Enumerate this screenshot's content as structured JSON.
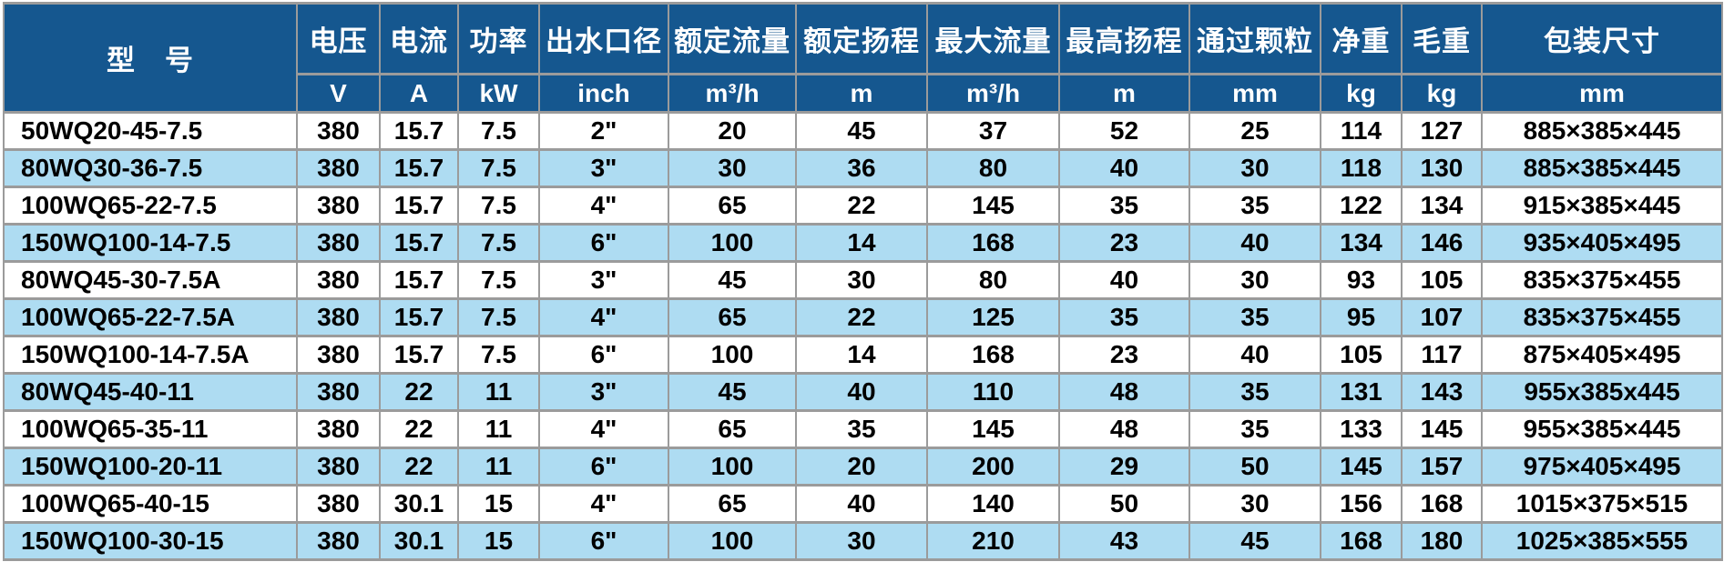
{
  "colors": {
    "header_bg": "#15578f",
    "row_alt_bg": "#aedcf2",
    "grid_line": "#9b9b9b",
    "header_text": "#ffffff",
    "body_text": "#000000"
  },
  "table": {
    "header": {
      "model": "型　号",
      "columns": [
        {
          "key": "voltage",
          "label": "电压",
          "unit": "V"
        },
        {
          "key": "current",
          "label": "电流",
          "unit": "A"
        },
        {
          "key": "power",
          "label": "功率",
          "unit": "kW"
        },
        {
          "key": "outlet-diameter",
          "label": "出水口径",
          "unit": "inch"
        },
        {
          "key": "rated-flow",
          "label": "额定流量",
          "unit": "m³/h"
        },
        {
          "key": "rated-head",
          "label": "额定扬程",
          "unit": "m"
        },
        {
          "key": "max-flow",
          "label": "最大流量",
          "unit": "m³/h"
        },
        {
          "key": "max-head",
          "label": "最高扬程",
          "unit": "m"
        },
        {
          "key": "particle-size",
          "label": "通过颗粒",
          "unit": "mm"
        },
        {
          "key": "net-weight",
          "label": "净重",
          "unit": "kg"
        },
        {
          "key": "gross-weight",
          "label": "毛重",
          "unit": "kg"
        },
        {
          "key": "package-size",
          "label": "包装尺寸",
          "unit": "mm"
        }
      ]
    },
    "rows": [
      [
        "50WQ20-45-7.5",
        "380",
        "15.7",
        "7.5",
        "2\"",
        "20",
        "45",
        "37",
        "52",
        "25",
        "114",
        "127",
        "885×385×445"
      ],
      [
        "80WQ30-36-7.5",
        "380",
        "15.7",
        "7.5",
        "3\"",
        "30",
        "36",
        "80",
        "40",
        "30",
        "118",
        "130",
        "885×385×445"
      ],
      [
        "100WQ65-22-7.5",
        "380",
        "15.7",
        "7.5",
        "4\"",
        "65",
        "22",
        "145",
        "35",
        "35",
        "122",
        "134",
        "915×385×445"
      ],
      [
        "150WQ100-14-7.5",
        "380",
        "15.7",
        "7.5",
        "6\"",
        "100",
        "14",
        "168",
        "23",
        "40",
        "134",
        "146",
        "935×405×495"
      ],
      [
        "80WQ45-30-7.5A",
        "380",
        "15.7",
        "7.5",
        "3\"",
        "45",
        "30",
        "80",
        "40",
        "30",
        "93",
        "105",
        "835×375×455"
      ],
      [
        "100WQ65-22-7.5A",
        "380",
        "15.7",
        "7.5",
        "4\"",
        "65",
        "22",
        "125",
        "35",
        "35",
        "95",
        "107",
        "835×375×455"
      ],
      [
        "150WQ100-14-7.5A",
        "380",
        "15.7",
        "7.5",
        "6\"",
        "100",
        "14",
        "168",
        "23",
        "40",
        "105",
        "117",
        "875×405×495"
      ],
      [
        "80WQ45-40-11",
        "380",
        "22",
        "11",
        "3\"",
        "45",
        "40",
        "110",
        "48",
        "35",
        "131",
        "143",
        "955x385x445"
      ],
      [
        "100WQ65-35-11",
        "380",
        "22",
        "11",
        "4\"",
        "65",
        "35",
        "145",
        "48",
        "35",
        "133",
        "145",
        "955×385×445"
      ],
      [
        "150WQ100-20-11",
        "380",
        "22",
        "11",
        "6\"",
        "100",
        "20",
        "200",
        "29",
        "50",
        "145",
        "157",
        "975×405×495"
      ],
      [
        "100WQ65-40-15",
        "380",
        "30.1",
        "15",
        "4\"",
        "65",
        "40",
        "140",
        "50",
        "30",
        "156",
        "168",
        "1015×375×515"
      ],
      [
        "150WQ100-30-15",
        "380",
        "30.1",
        "15",
        "6\"",
        "100",
        "30",
        "210",
        "43",
        "45",
        "168",
        "180",
        "1025×385×555"
      ]
    ]
  }
}
